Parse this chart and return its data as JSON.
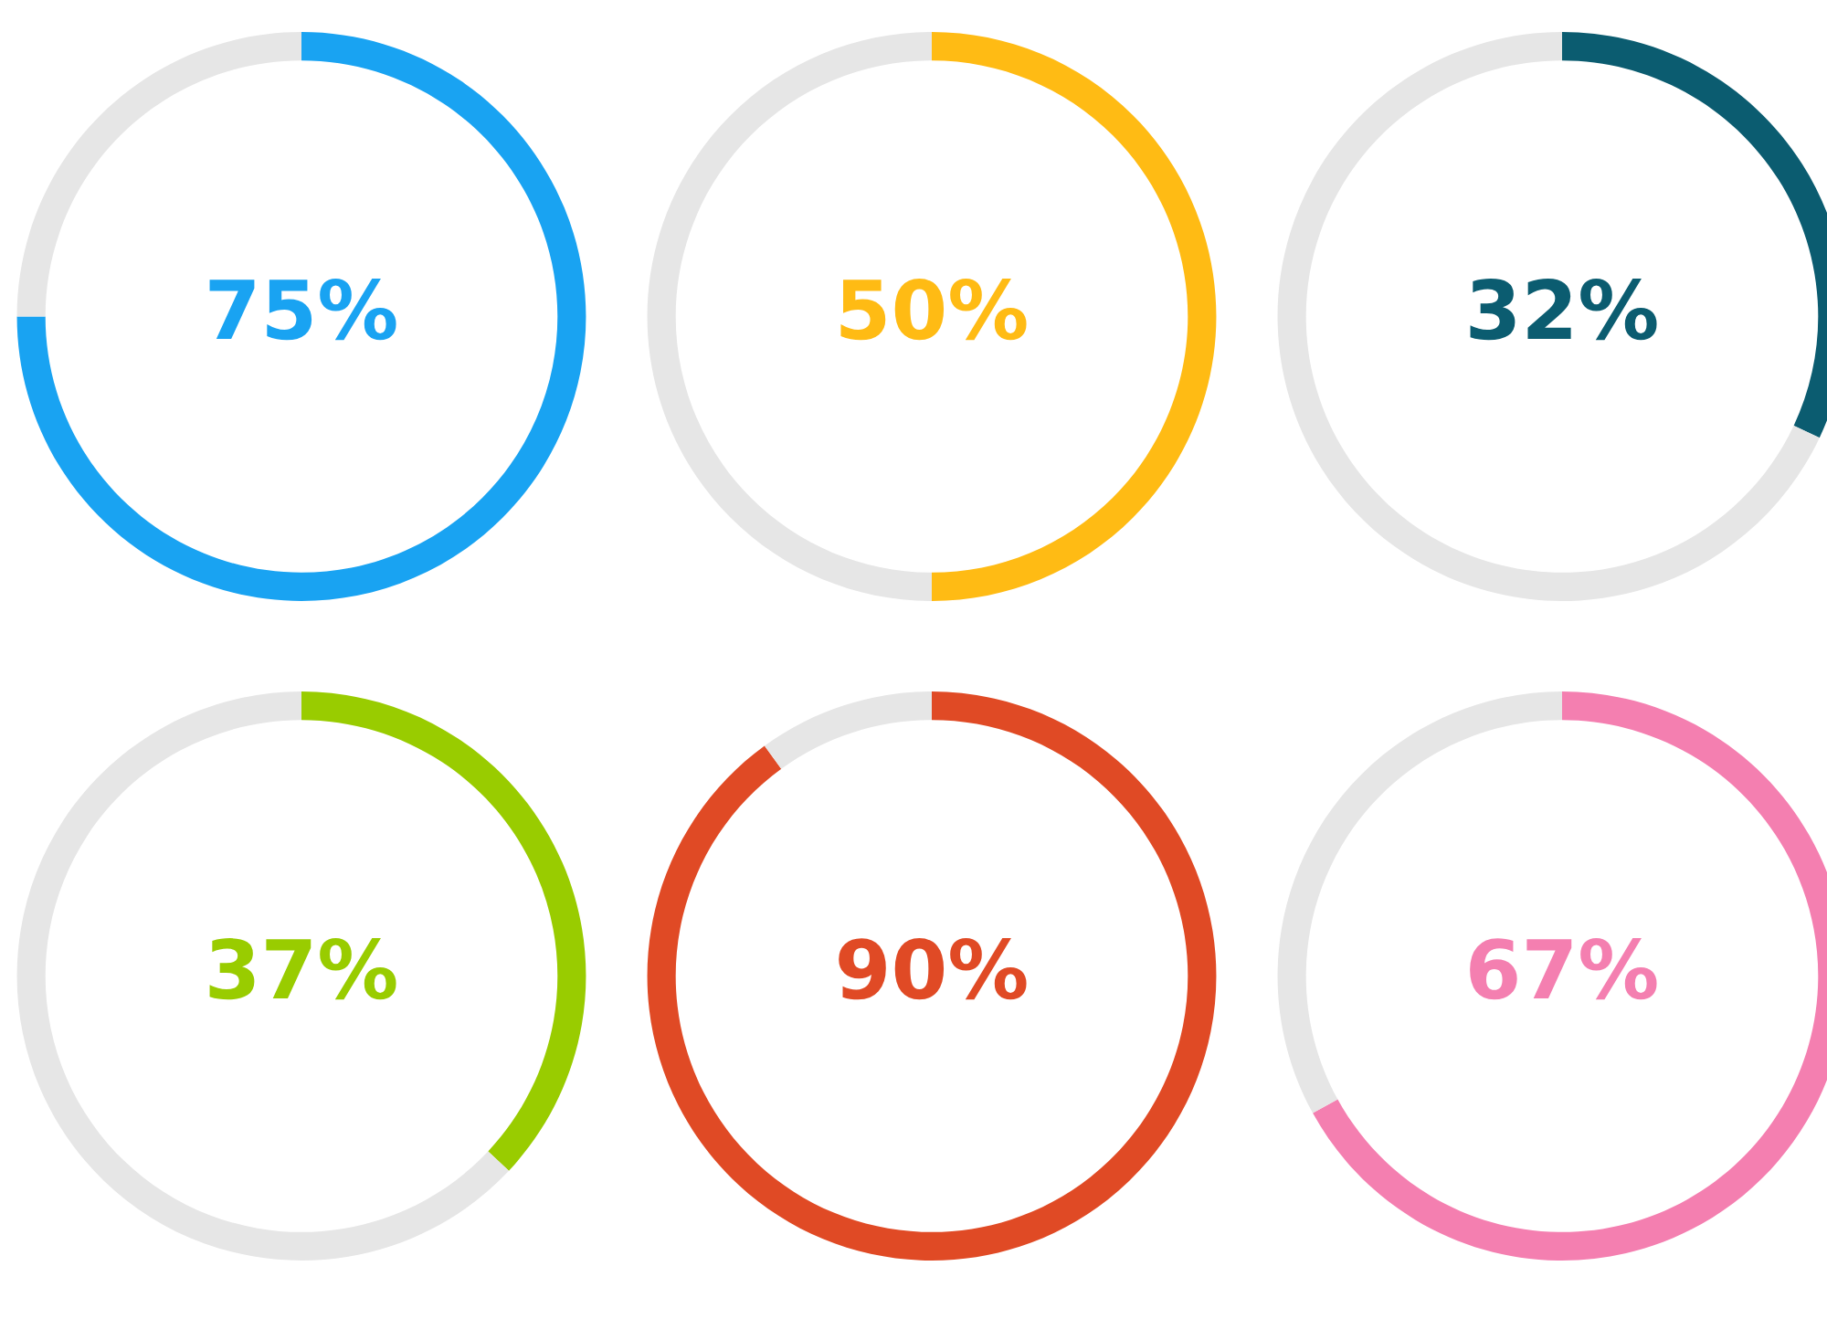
{
  "chart_data": [
    {
      "type": "donut",
      "categories": [
        null,
        null
      ],
      "values": [
        75,
        25
      ],
      "colors": [
        "#19a3f2",
        "#e6e6e6"
      ],
      "value_labels": [
        "75%",
        null
      ]
    },
    {
      "type": "donut",
      "categories": [
        null,
        null
      ],
      "values": [
        50,
        50
      ],
      "colors": [
        "#ffbb14",
        "#e6e6e6"
      ],
      "value_labels": [
        "50%",
        null
      ]
    },
    {
      "type": "donut",
      "categories": [
        null,
        null
      ],
      "values": [
        32,
        68
      ],
      "colors": [
        "#0b5c70",
        "#e6e6e6"
      ],
      "value_labels": [
        "32%",
        null
      ]
    },
    {
      "type": "donut",
      "categories": [
        null,
        null
      ],
      "values": [
        37,
        63
      ],
      "colors": [
        "#99cc00",
        "#e6e6e6"
      ],
      "value_labels": [
        "37%",
        null
      ]
    },
    {
      "type": "donut",
      "categories": [
        null,
        null
      ],
      "values": [
        90,
        10
      ],
      "colors": [
        "#e04a25",
        "#e6e6e6"
      ],
      "value_labels": [
        "90%",
        null
      ]
    },
    {
      "type": "donut",
      "categories": [
        null,
        null
      ],
      "values": [
        67,
        33
      ],
      "colors": [
        "#f47fb0",
        "#e6e6e6"
      ],
      "value_labels": [
        "67%",
        null
      ]
    }
  ]
}
